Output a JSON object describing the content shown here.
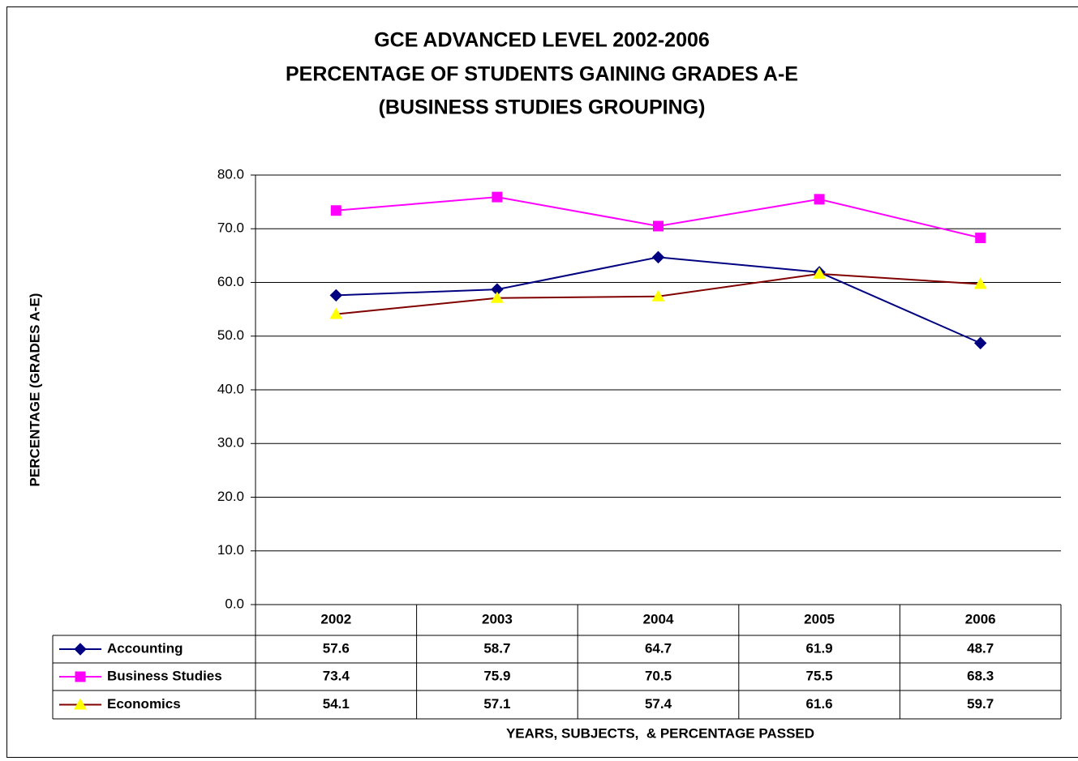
{
  "chart_data": {
    "type": "line",
    "title": [
      "GCE ADVANCED LEVEL 2002-2006",
      "PERCENTAGE OF STUDENTS GAINING GRADES A-E",
      "(BUSINESS STUDIES GROUPING)"
    ],
    "y_label": "PERCENTAGE (GRADES A-E)",
    "x_label": "YEARS, SUBJECTS,  & PERCENTAGE PASSED",
    "categories": [
      "2002",
      "2003",
      "2004",
      "2005",
      "2006"
    ],
    "series": [
      {
        "name": "Accounting",
        "color": "#000080",
        "marker": "diamond",
        "marker_color": "#000080",
        "values": [
          57.6,
          58.7,
          64.7,
          61.9,
          48.7
        ]
      },
      {
        "name": "Business Studies",
        "color": "#ff00ff",
        "marker": "square",
        "marker_color": "#ff00ff",
        "values": [
          73.4,
          75.9,
          70.5,
          75.5,
          68.3
        ]
      },
      {
        "name": "Economics",
        "color": "#800000",
        "marker": "triangle",
        "marker_color": "#ffff00",
        "values": [
          54.1,
          57.1,
          57.4,
          61.6,
          59.7
        ]
      }
    ],
    "ylim": [
      0,
      80
    ],
    "yticks": [
      {
        "value": 0,
        "label": "0.0"
      },
      {
        "value": 10,
        "label": "10.0"
      },
      {
        "value": 20,
        "label": "20.0"
      },
      {
        "value": 30,
        "label": "30.0"
      },
      {
        "value": 40,
        "label": "40.0"
      },
      {
        "value": 50,
        "label": "50.0"
      },
      {
        "value": 60,
        "label": "60.0"
      },
      {
        "value": 70,
        "label": "70.0"
      },
      {
        "value": 80,
        "label": "80.0"
      }
    ],
    "grid": true,
    "data_table": true
  }
}
